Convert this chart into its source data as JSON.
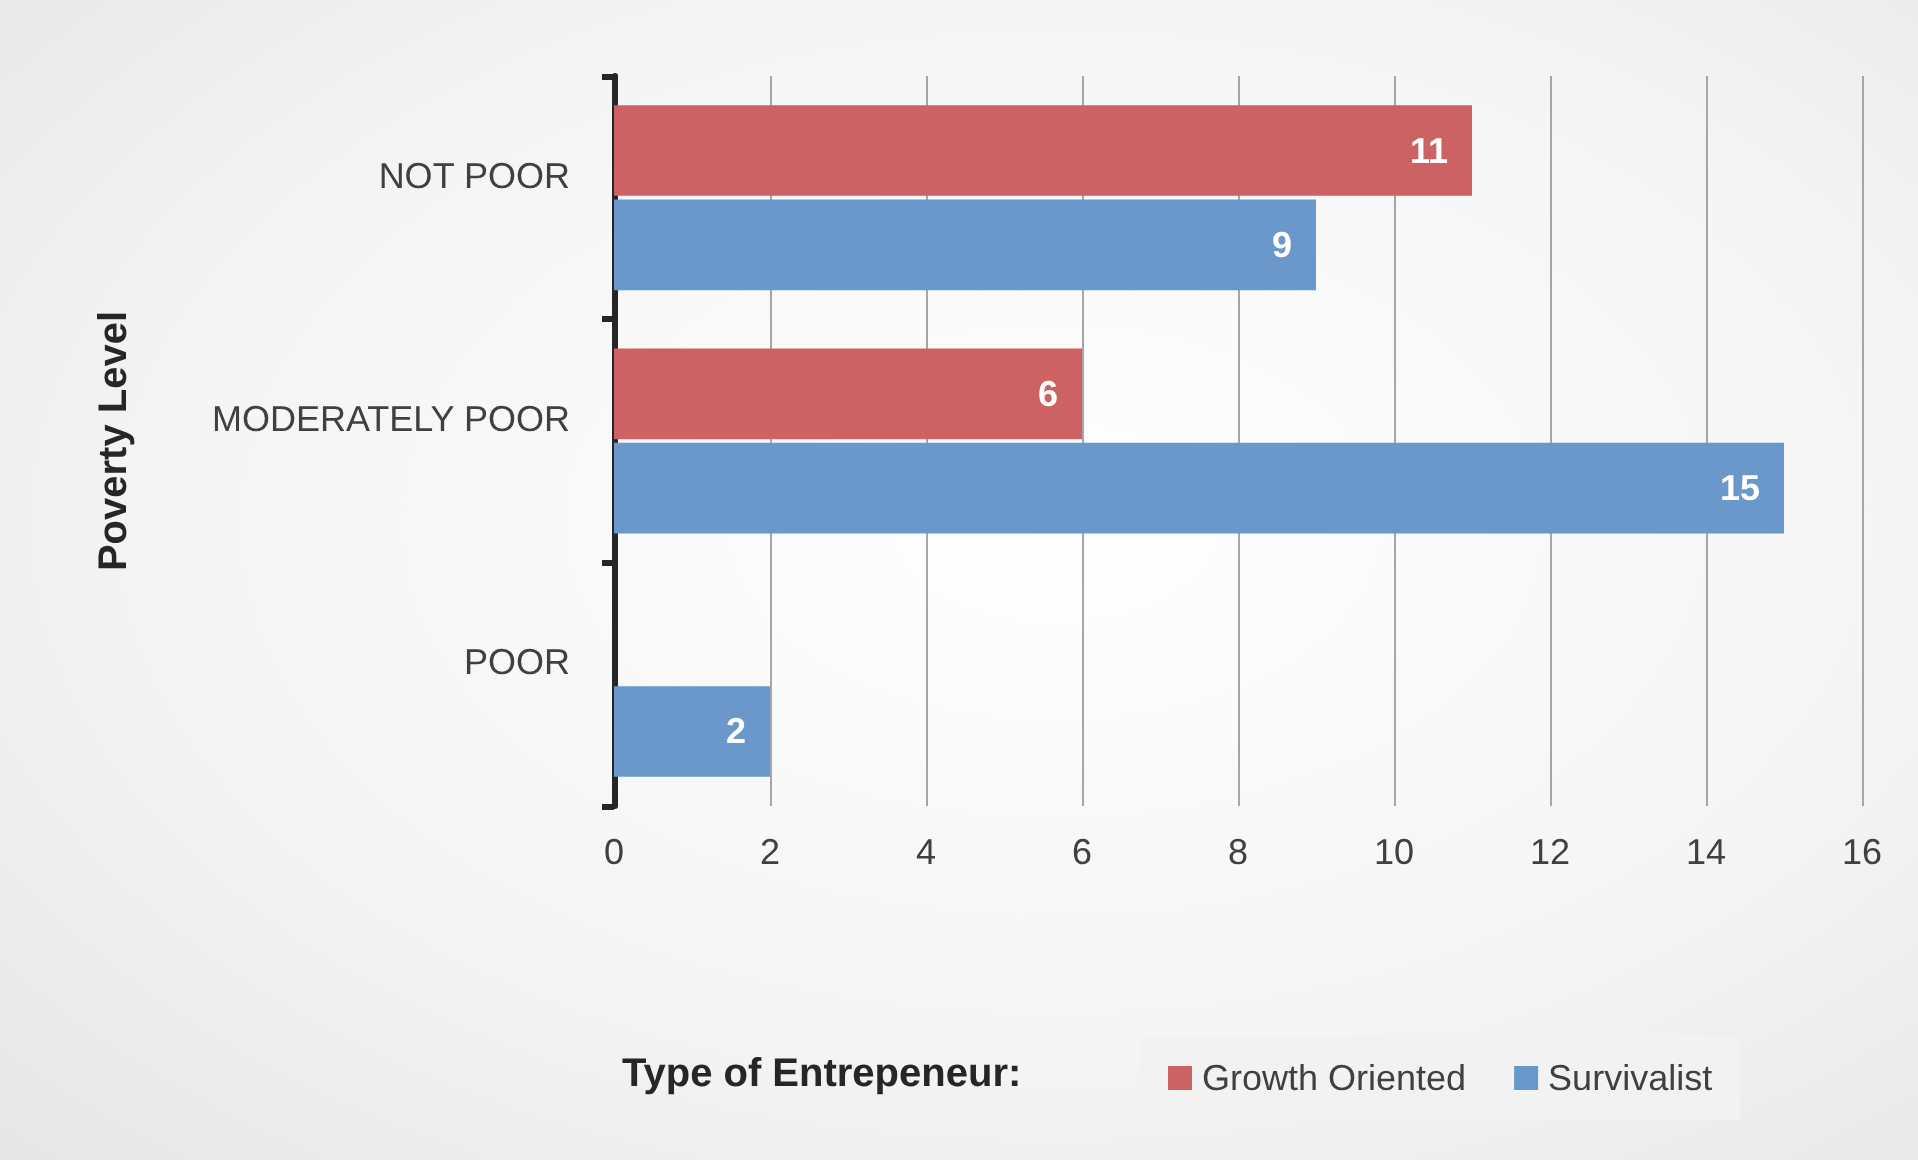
{
  "chart_data": {
    "type": "bar",
    "orientation": "horizontal",
    "ylabel": "Poverty Level",
    "legend_title": "Type of Entrepeneur:",
    "categories": [
      "NOT POOR",
      "MODERATELY POOR",
      "POOR"
    ],
    "series": [
      {
        "name": "Growth Oriented",
        "color": "#cd6262",
        "values": [
          11,
          6,
          null
        ]
      },
      {
        "name": "Survivalist",
        "color": "#6a98cb",
        "values": [
          9,
          15,
          2
        ]
      }
    ],
    "xlim": [
      0,
      16
    ],
    "xticks": [
      0,
      2,
      4,
      6,
      8,
      10,
      12,
      14,
      16
    ],
    "grid": "x",
    "legend": "bottom",
    "data_labels": true
  }
}
